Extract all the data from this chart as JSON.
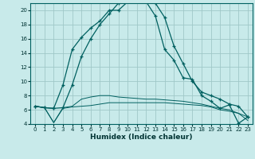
{
  "xlabel": "Humidex (Indice chaleur)",
  "xlim": [
    -0.5,
    23.5
  ],
  "ylim": [
    4,
    21
  ],
  "yticks": [
    4,
    6,
    8,
    10,
    12,
    14,
    16,
    18,
    20
  ],
  "xticks": [
    0,
    1,
    2,
    3,
    4,
    5,
    6,
    7,
    8,
    9,
    10,
    11,
    12,
    13,
    14,
    15,
    16,
    17,
    18,
    19,
    20,
    21,
    22,
    23
  ],
  "bg_color": "#c8eaea",
  "grid_color": "#a0c8c8",
  "line_color": "#006060",
  "curve1_x": [
    0,
    1,
    2,
    3,
    4,
    5,
    6,
    7,
    8,
    9,
    10,
    11,
    12,
    13,
    14,
    15,
    16,
    17,
    18,
    19,
    20,
    21,
    22,
    23
  ],
  "curve1_y": [
    6.5,
    6.3,
    6.2,
    9.5,
    14.5,
    16.2,
    17.5,
    18.5,
    20.0,
    20.0,
    21.2,
    21.2,
    21.2,
    19.2,
    14.5,
    13.0,
    10.5,
    10.3,
    8.0,
    7.2,
    6.2,
    6.7,
    4.1,
    5.0
  ],
  "curve2_x": [
    0,
    1,
    2,
    3,
    4,
    5,
    6,
    7,
    8,
    9,
    10,
    11,
    12,
    13,
    14,
    15,
    16,
    17,
    18,
    19,
    20,
    21,
    22,
    23
  ],
  "curve2_y": [
    6.5,
    6.3,
    6.2,
    6.3,
    9.5,
    13.5,
    16.0,
    18.0,
    19.5,
    21.0,
    21.2,
    21.2,
    21.2,
    21.0,
    19.0,
    15.0,
    12.5,
    10.0,
    8.5,
    8.0,
    7.5,
    6.8,
    6.5,
    5.0
  ],
  "curve3_x": [
    0,
    1,
    2,
    3,
    4,
    5,
    6,
    7,
    8,
    9,
    10,
    11,
    12,
    13,
    14,
    15,
    16,
    17,
    18,
    19,
    20,
    21,
    22,
    23
  ],
  "curve3_y": [
    6.5,
    6.3,
    4.2,
    6.3,
    6.5,
    7.5,
    7.8,
    8.0,
    8.0,
    7.8,
    7.7,
    7.6,
    7.5,
    7.5,
    7.4,
    7.3,
    7.2,
    7.0,
    6.8,
    6.5,
    6.2,
    6.0,
    5.5,
    5.0
  ],
  "curve4_x": [
    0,
    1,
    2,
    3,
    4,
    5,
    6,
    7,
    8,
    9,
    10,
    11,
    12,
    13,
    14,
    15,
    16,
    17,
    18,
    19,
    20,
    21,
    22,
    23
  ],
  "curve4_y": [
    6.5,
    6.3,
    4.2,
    6.2,
    6.4,
    6.5,
    6.6,
    6.8,
    7.0,
    7.0,
    7.0,
    7.0,
    7.0,
    7.0,
    7.0,
    6.9,
    6.8,
    6.7,
    6.6,
    6.4,
    6.0,
    5.8,
    5.5,
    4.5
  ]
}
